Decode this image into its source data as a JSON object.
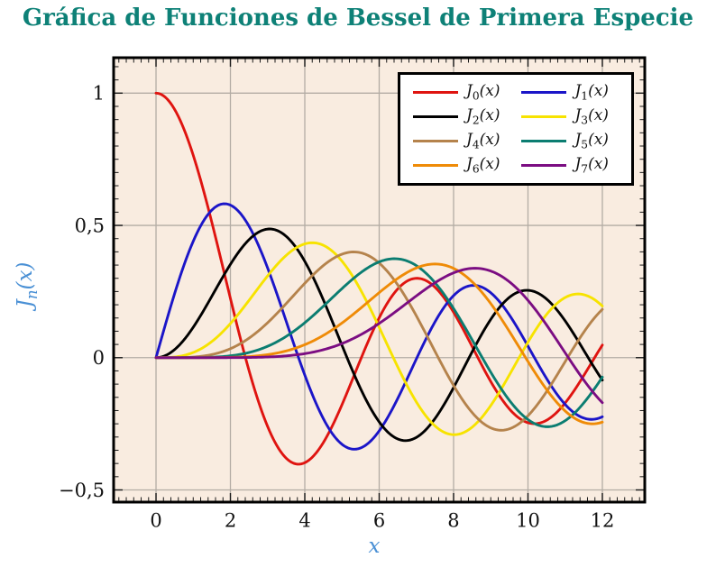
{
  "chart_data": {
    "type": "line",
    "title": "Gráfica de Funciones de Bessel de Primera Especie",
    "xlabel": "x",
    "ylabel": "Jn(x)",
    "ylabel_parts": {
      "main": "J",
      "sub": "n",
      "rest": "(x)"
    },
    "xlim": [
      -1.14,
      13.14
    ],
    "ylim": [
      -0.546,
      1.134
    ],
    "domain": [
      0,
      12
    ],
    "grid": "major",
    "legend_position": "top-right-inside",
    "legend_columns": 2,
    "x_ticks": [
      {
        "v": 0,
        "label": "0"
      },
      {
        "v": 2,
        "label": "2"
      },
      {
        "v": 4,
        "label": "4"
      },
      {
        "v": 6,
        "label": "6"
      },
      {
        "v": 8,
        "label": "8"
      },
      {
        "v": 10,
        "label": "10"
      },
      {
        "v": 12,
        "label": "12"
      }
    ],
    "y_ticks": [
      {
        "v": 1,
        "label": "1"
      },
      {
        "v": 0.5,
        "label": "0,5"
      },
      {
        "v": 0,
        "label": "0"
      },
      {
        "v": -0.5,
        "label": "−0,5"
      }
    ],
    "x_minor_step": 0.2,
    "y_minor_step": 0.05,
    "x_major_step": 2,
    "y_major_step": 0.5,
    "colors": {
      "title": "#0e8177",
      "axis_label": "#4a90d5",
      "plot_bg": "#f9ece0",
      "grid": "#b3aca4",
      "frame": "#000000",
      "tick": "#1a1a1a",
      "tick_label": "#111111",
      "legend_bg": "#ffffff",
      "legend_border": "#000000"
    },
    "x_samples": [
      0,
      1,
      2,
      3,
      4,
      5,
      6,
      7,
      8,
      9,
      10,
      11,
      12
    ],
    "series": [
      {
        "name": "J0(x)",
        "order": 0,
        "color": "#df1410",
        "label_parts": {
          "main": "J",
          "sub": "0",
          "rest": "(x)"
        },
        "values": [
          1.0,
          0.7652,
          0.2239,
          -0.2601,
          -0.3971,
          -0.1776,
          0.1506,
          0.3001,
          0.1717,
          -0.0903,
          -0.2459,
          -0.1712,
          0.0477
        ]
      },
      {
        "name": "J1(x)",
        "order": 1,
        "color": "#1b15c8",
        "label_parts": {
          "main": "J",
          "sub": "1",
          "rest": "(x)"
        },
        "values": [
          0.0,
          0.4401,
          0.5767,
          0.3391,
          -0.066,
          -0.3276,
          -0.2767,
          -0.0047,
          0.2346,
          0.2453,
          0.0435,
          -0.1768,
          -0.2234
        ]
      },
      {
        "name": "J2(x)",
        "order": 2,
        "color": "#000000",
        "label_parts": {
          "main": "J",
          "sub": "2",
          "rest": "(x)"
        },
        "values": [
          0.0,
          0.1149,
          0.3528,
          0.4861,
          0.3641,
          0.0466,
          -0.2429,
          -0.3014,
          -0.113,
          0.1448,
          0.2546,
          0.139,
          -0.0849
        ]
      },
      {
        "name": "J3(x)",
        "order": 3,
        "color": "#f7e300",
        "label_parts": {
          "main": "J",
          "sub": "3",
          "rest": "(x)"
        },
        "values": [
          0.0,
          0.0196,
          0.1289,
          0.3091,
          0.4302,
          0.3648,
          0.1148,
          -0.1676,
          -0.2911,
          -0.1809,
          0.0584,
          0.2273,
          0.1951
        ]
      },
      {
        "name": "J4(x)",
        "order": 4,
        "color": "#b5834c",
        "label_parts": {
          "main": "J",
          "sub": "4",
          "rest": "(x)"
        },
        "values": [
          0.0,
          0.0025,
          0.034,
          0.132,
          0.2811,
          0.3912,
          0.3576,
          0.1578,
          -0.1054,
          -0.2655,
          -0.2196,
          -0.015,
          0.1825
        ]
      },
      {
        "name": "J5(x)",
        "order": 5,
        "color": "#0b7d71",
        "label_parts": {
          "main": "J",
          "sub": "5",
          "rest": "(x)"
        },
        "values": [
          0.0,
          0.0002,
          0.007,
          0.043,
          0.1321,
          0.2611,
          0.3621,
          0.3479,
          0.1858,
          -0.055,
          -0.2341,
          -0.2383,
          -0.0735
        ]
      },
      {
        "name": "J6(x)",
        "order": 6,
        "color": "#ef8b07",
        "label_parts": {
          "main": "J",
          "sub": "6",
          "rest": "(x)"
        },
        "values": [
          0.0,
          0.0,
          0.0012,
          0.0114,
          0.0491,
          0.131,
          0.2458,
          0.3392,
          0.3376,
          0.2043,
          -0.0145,
          -0.2016,
          -0.2437
        ]
      },
      {
        "name": "J7(x)",
        "order": 7,
        "color": "#7b0d82",
        "label_parts": {
          "main": "J",
          "sub": "7",
          "rest": "(x)"
        },
        "values": [
          0.0,
          0.0,
          0.0002,
          0.0025,
          0.0152,
          0.0534,
          0.1296,
          0.2336,
          0.3206,
          0.3275,
          0.2167,
          0.0184,
          -0.1703
        ]
      }
    ]
  }
}
